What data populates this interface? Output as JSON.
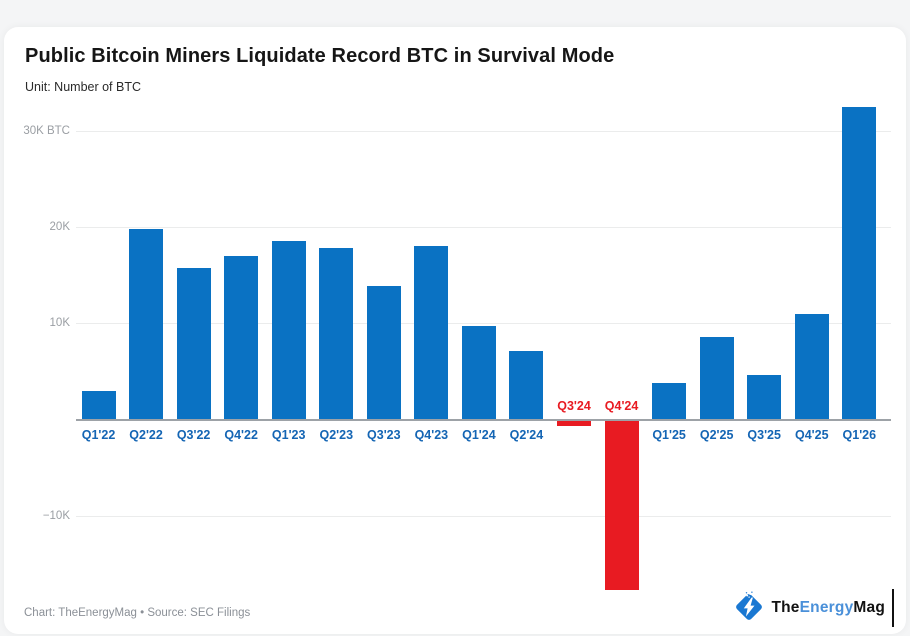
{
  "header": {
    "title": "Public Bitcoin Miners Liquidate Record BTC in Survival Mode",
    "subtitle": "Unit: Number of BTC"
  },
  "chart_data": {
    "type": "bar",
    "title": "Public Bitcoin Miners Liquidate Record BTC in Survival Mode",
    "ylabel": "Number of BTC",
    "categories": [
      "Q1'22",
      "Q2'22",
      "Q3'22",
      "Q4'22",
      "Q1'23",
      "Q2'23",
      "Q3'23",
      "Q4'23",
      "Q1'24",
      "Q2'24",
      "Q3'24",
      "Q4'24",
      "Q1'25",
      "Q2'25",
      "Q3'25",
      "Q4'25",
      "Q1'26"
    ],
    "values": [
      3000,
      19800,
      15800,
      17000,
      18600,
      17800,
      13900,
      18000,
      9700,
      7100,
      -500,
      -17600,
      3800,
      8600,
      4600,
      11000,
      32500
    ],
    "y_axis": {
      "ticks": [
        {
          "label": "30K BTC",
          "value": 30000
        },
        {
          "label": "20K",
          "value": 20000
        },
        {
          "label": "10K",
          "value": 10000
        },
        {
          "label": "−10K",
          "value": -10000
        }
      ],
      "range": [
        -19500,
        33500
      ]
    },
    "grid": true,
    "legend": "none",
    "colors": {
      "positive_bar": "#0a72c3",
      "negative_bar": "#e81b22",
      "positive_label": "#1465b4",
      "negative_label": "#e81b22"
    }
  },
  "footer": {
    "caption": "Chart: TheEnergyMag • Source: SEC Filings"
  },
  "logo": {
    "icon": "lightning-bolt-diamond-icon",
    "text_the": "The",
    "text_energy": "Energy",
    "text_mag": "Mag",
    "colors": {
      "diamond": "#1a78d2",
      "energy_text": "#4a90d9",
      "dark_text": "#121212"
    }
  }
}
